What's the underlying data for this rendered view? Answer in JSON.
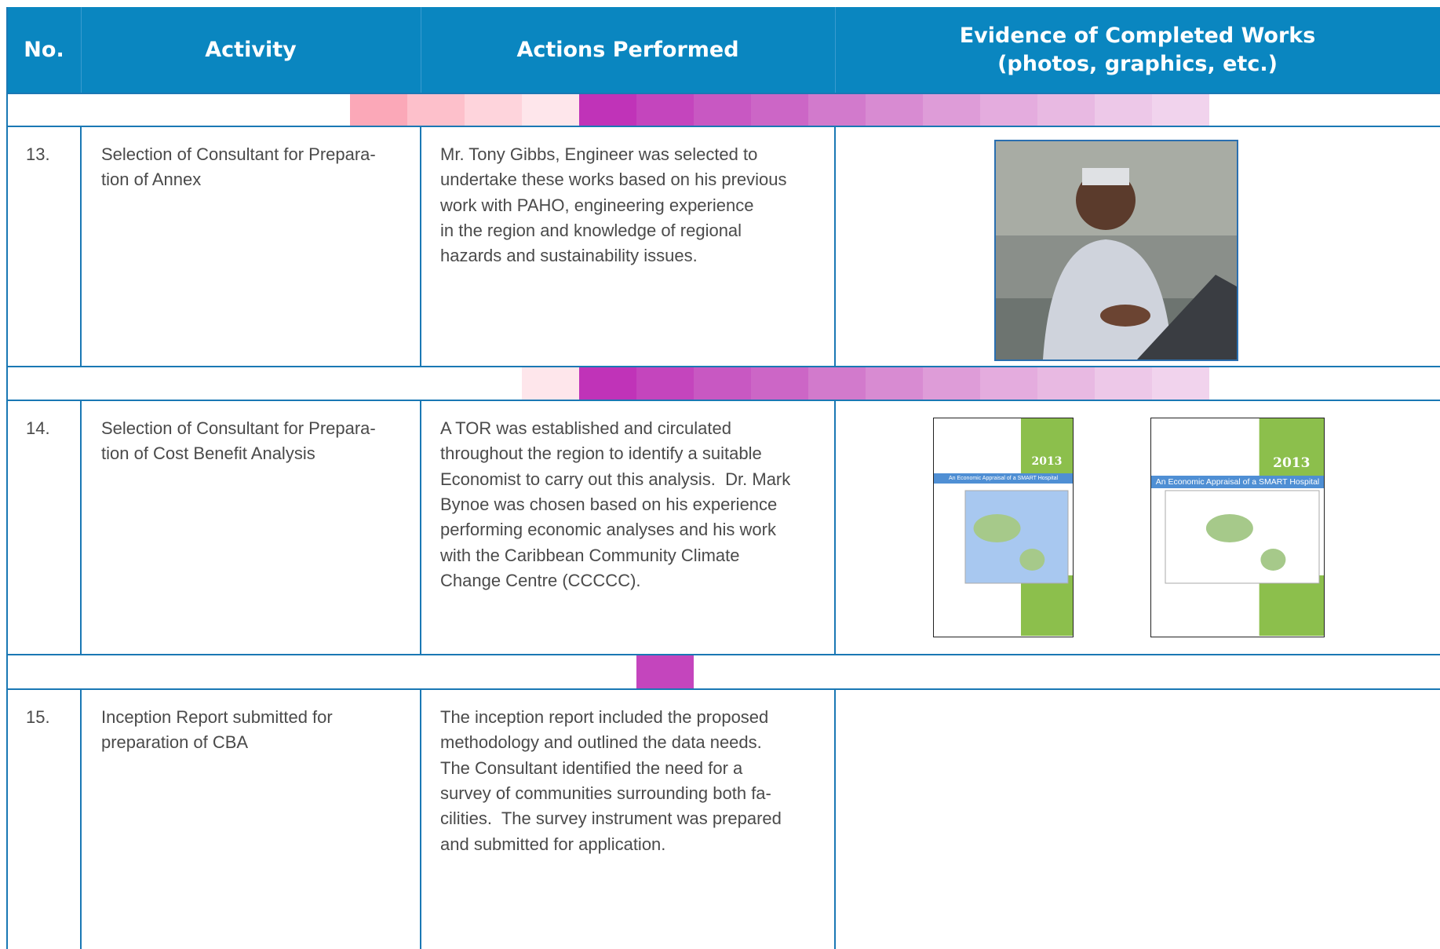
{
  "header": {
    "columns": [
      [
        "No."
      ],
      [
        "Activity"
      ],
      [
        "Actions Performed"
      ],
      [
        "Evidence of Completed Works",
        "(photos, graphics, etc.)"
      ]
    ]
  },
  "table": {
    "rows": [
      {
        "no": "13.",
        "activity": [
          "Selection of Consultant for Prepara-",
          "tion of Annex"
        ],
        "actions": [
          "Mr. Tony Gibbs, Engineer was selected to",
          "undertake these works based on his previous",
          "work with PAHO, engineering experience",
          "in the region and knowledge of regional",
          "hazards and sustainability issues."
        ]
      },
      {
        "no": "14.",
        "activity": [
          "Selection of Consultant for Prepara-",
          "tion of Cost Benefit Analysis"
        ],
        "actions": [
          "A TOR was established and circulated",
          "throughout the region to identify a suitable",
          "Economist to carry out this analysis.  Dr. Mark",
          "Bynoe was chosen based on his experience",
          "performing economic analyses and his work",
          "with the Caribbean Community Climate",
          "Change Centre (CCCCC)."
        ],
        "covers": [
          {
            "year": "2013",
            "title": "An Economic Appraisal of a SMART Hospital"
          },
          {
            "year": "2013",
            "title": "An Economic Appraisal of a SMART Hospital"
          }
        ]
      },
      {
        "no": "15.",
        "activity": [
          "Inception Report submitted for",
          "preparation of CBA"
        ],
        "actions": [
          "The inception report included the proposed",
          "methodology and outlined the data needs.",
          "The Consultant identified the need for a",
          "survey of communities surrounding both fa-",
          "cilities.  The survey instrument was prepared",
          "and submitted for application."
        ]
      }
    ]
  }
}
